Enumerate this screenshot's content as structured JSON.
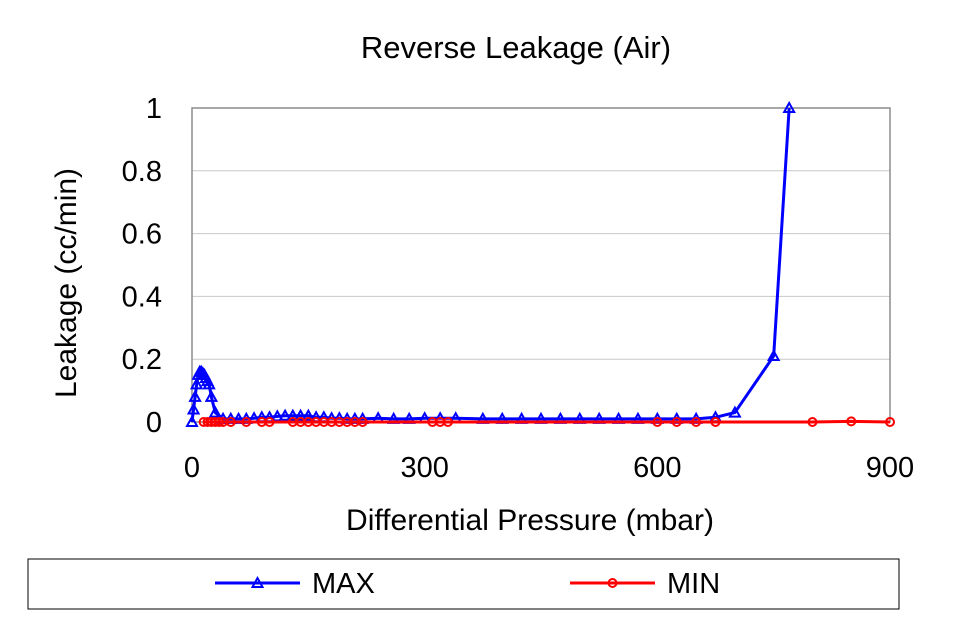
{
  "chart_data": {
    "type": "line",
    "title": "Reverse Leakage (Air)",
    "xlabel": "Differential Pressure (mbar)",
    "ylabel": "Leakage (cc/min)",
    "xlim": [
      0,
      900
    ],
    "ylim": [
      0,
      1
    ],
    "xticks": [
      0,
      300,
      600,
      900
    ],
    "xtick_labels": [
      "0",
      "300",
      "600",
      "900"
    ],
    "yticks": [
      0,
      0.2,
      0.4,
      0.6,
      0.8,
      1
    ],
    "ytick_labels": [
      "0",
      "0.2",
      "0.4",
      "0.6",
      "0.8",
      "1"
    ],
    "grid": "horizontal",
    "legend_position": "bottom",
    "series": [
      {
        "name": "MAX",
        "color": "#0000ff",
        "marker": "triangle",
        "x": [
          0,
          2,
          4,
          6,
          8,
          10,
          12,
          14,
          16,
          18,
          20,
          22,
          25,
          30,
          40,
          50,
          60,
          70,
          80,
          90,
          100,
          110,
          120,
          130,
          140,
          150,
          160,
          170,
          180,
          190,
          200,
          210,
          220,
          240,
          260,
          280,
          300,
          320,
          340,
          375,
          400,
          425,
          450,
          475,
          500,
          525,
          550,
          575,
          600,
          625,
          650,
          675,
          700,
          750,
          770
        ],
        "y": [
          0,
          0.04,
          0.08,
          0.12,
          0.15,
          0.16,
          0.16,
          0.155,
          0.15,
          0.14,
          0.13,
          0.12,
          0.08,
          0.03,
          0.01,
          0.01,
          0.01,
          0.01,
          0.012,
          0.015,
          0.015,
          0.018,
          0.02,
          0.02,
          0.02,
          0.02,
          0.015,
          0.015,
          0.012,
          0.012,
          0.01,
          0.01,
          0.01,
          0.012,
          0.01,
          0.01,
          0.012,
          0.012,
          0.012,
          0.01,
          0.01,
          0.01,
          0.01,
          0.01,
          0.01,
          0.01,
          0.01,
          0.01,
          0.01,
          0.01,
          0.01,
          0.015,
          0.03,
          0.21,
          1
        ]
      },
      {
        "name": "MIN",
        "color": "#ff0000",
        "marker": "circle",
        "x": [
          15,
          20,
          25,
          30,
          35,
          40,
          50,
          70,
          90,
          100,
          130,
          140,
          150,
          160,
          170,
          180,
          190,
          200,
          210,
          220,
          310,
          320,
          330,
          600,
          625,
          650,
          675,
          800,
          850,
          900
        ],
        "y": [
          0,
          0,
          0,
          0,
          0,
          0,
          0,
          0,
          0,
          0,
          0,
          0,
          0,
          0,
          0,
          0,
          0,
          0,
          0,
          0,
          0,
          0,
          0,
          0,
          0,
          0,
          0,
          0,
          0.002,
          0
        ]
      }
    ]
  }
}
